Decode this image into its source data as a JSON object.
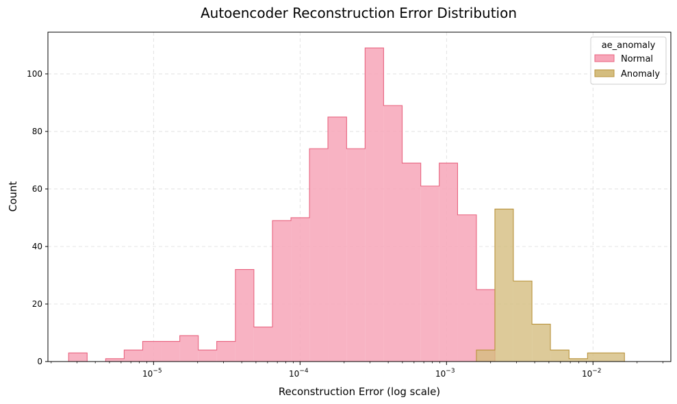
{
  "chart_data": {
    "type": "histogram",
    "title": "Autoencoder Reconstruction Error Distribution",
    "xlabel": "Reconstruction Error (log scale)",
    "ylabel": "Count",
    "x_scale": "log",
    "xlim": [
      1.9e-06,
      0.034
    ],
    "ylim": [
      0,
      114.5
    ],
    "x_ticks": [
      {
        "value": 1e-05,
        "base": "10",
        "exp": "−5"
      },
      {
        "value": 0.0001,
        "base": "10",
        "exp": "−4"
      },
      {
        "value": 0.001,
        "base": "10",
        "exp": "−3"
      },
      {
        "value": 0.01,
        "base": "10",
        "exp": "−2"
      }
    ],
    "y_ticks": [
      0,
      20,
      40,
      60,
      80,
      100
    ],
    "grid": true,
    "legend": {
      "title": "ae_anomaly",
      "placement": "top-right"
    },
    "bin_edges": [
      2.63e-06,
      3.52e-06,
      4.71e-06,
      6.3e-06,
      8.43e-06,
      1.128e-05,
      1.51e-05,
      2.02e-05,
      2.7e-05,
      3.62e-05,
      4.84e-05,
      6.48e-05,
      8.67e-05,
      0.000116,
      0.000155,
      0.000208,
      0.000278,
      0.000372,
      0.000498,
      0.000667,
      0.000892,
      0.00119,
      0.0016,
      0.00214,
      0.00286,
      0.00383,
      0.00512,
      0.00686,
      0.00918,
      0.0123,
      0.0164,
      0.022
    ],
    "series": [
      {
        "name": "Normal",
        "fill": "#f7a6b9",
        "stroke": "#e8637f",
        "counts": [
          3,
          0,
          1,
          4,
          7,
          7,
          9,
          4,
          7,
          32,
          12,
          49,
          50,
          74,
          85,
          74,
          109,
          89,
          69,
          61,
          69,
          51,
          25,
          0,
          0,
          0,
          0,
          0,
          0,
          0,
          0
        ]
      },
      {
        "name": "Anomaly",
        "fill": "#d4bd7f",
        "stroke": "#b8923a",
        "counts": [
          0,
          0,
          0,
          0,
          0,
          0,
          0,
          0,
          0,
          0,
          0,
          0,
          0,
          0,
          0,
          0,
          0,
          0,
          0,
          0,
          0,
          0,
          4,
          53,
          28,
          13,
          4,
          1,
          3,
          3,
          0
        ]
      }
    ]
  }
}
